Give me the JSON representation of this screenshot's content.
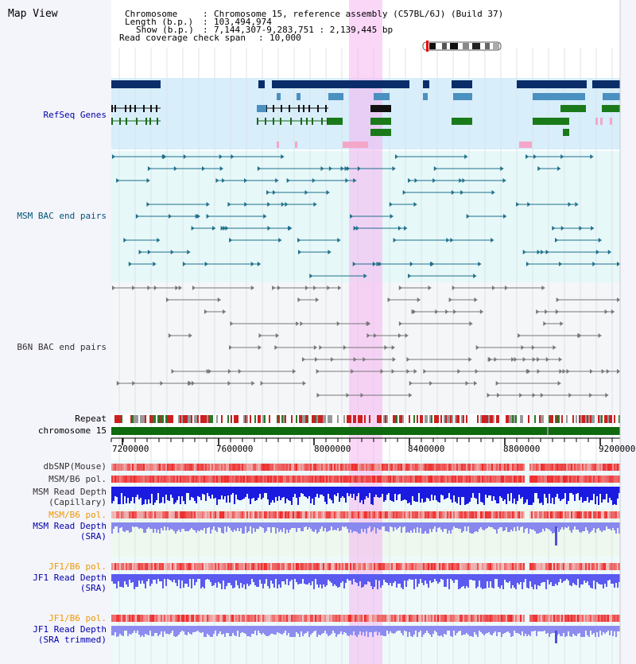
{
  "title": "Map View",
  "header": {
    "chromosome_key": "Chromosome",
    "chromosome_value": "Chromosome 15, reference assembly (C57BL/6J) (Build 37)",
    "length_key": "Length (b.p.)",
    "length_value": "103,494,974",
    "show_key": "Show (b.p.)",
    "show_value": "7,144,307-9,283,751 : 2,139,445 bp",
    "coverage_key": "Read coverage check span",
    "coverage_value": "10,000",
    "separator": ":"
  },
  "tracks": {
    "refseq": "RefSeq Genes",
    "msm_bac": "MSM BAC end pairs",
    "b6n_bac": "B6N BAC end pairs",
    "repeat": "Repeat",
    "chromosome": "chromosome 15",
    "dbsnp": "dbSNP(Mouse)",
    "msm_b6_pol_1": "MSM/B6 pol.",
    "msm_depth_cap_1": "MSM Read Depth",
    "msm_depth_cap_2": "(Capillary)",
    "msm_b6_pol_2": "MSM/B6 pol.",
    "msm_depth_sra_1": "MSM Read Depth",
    "msm_depth_sra_2": "(SRA)",
    "jf1_b6_pol_1": "JF1/B6 pol.",
    "jf1_depth_sra_1": "JF1 Read Depth",
    "jf1_depth_sra_2": "(SRA)",
    "jf1_b6_pol_2": "JF1/B6 pol.",
    "jf1_depth_trim_1": "JF1 Read Depth",
    "jf1_depth_trim_2": "(SRA trimmed)"
  },
  "axis": {
    "ticks": [
      "7200000",
      "7600000",
      "8000000",
      "8400000",
      "8800000",
      "9200000"
    ]
  },
  "colors": {
    "label_dark": "#000000",
    "label_blue": "#0000aa",
    "label_teal": "#005577",
    "label_gray": "#333333",
    "label_orange": "#ee9900",
    "highlight": "#f5b4f0",
    "refseq_bg": "#d8eefa",
    "bac_bg": "#e6f8f8"
  }
}
